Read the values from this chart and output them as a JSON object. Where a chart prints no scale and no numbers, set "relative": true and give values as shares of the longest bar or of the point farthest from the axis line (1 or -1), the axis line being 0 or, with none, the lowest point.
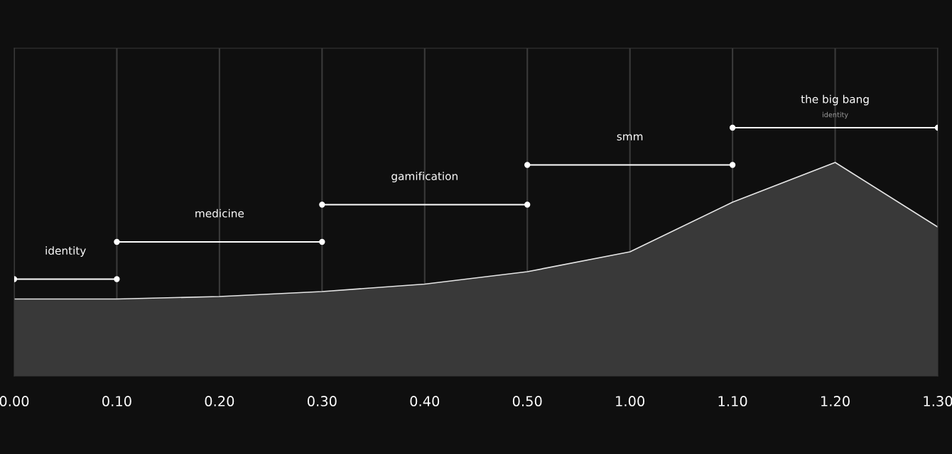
{
  "chart_data": {
    "type": "area",
    "relative": true,
    "grid": "x",
    "categories": [
      "0.00",
      "0.10",
      "0.20",
      "0.30",
      "0.40",
      "0.50",
      "1.00",
      "1.10",
      "1.20",
      "1.30"
    ],
    "series": [
      {
        "color": "#e6e6e6",
        "values": [
          0.31,
          0.31,
          0.32,
          0.34,
          0.37,
          0.42,
          0.5,
          0.7,
          0.86,
          0.6
        ]
      },
      {
        "type": "line",
        "name": "identity",
        "color": "#ffffff",
        "marker": "circle",
        "x": [
          "0.00",
          "0.10"
        ],
        "values": [
          0.39,
          0.39
        ]
      },
      {
        "type": "line",
        "name": "medicine",
        "color": "#ffffff",
        "marker": "circle",
        "x": [
          "0.10",
          "0.30"
        ],
        "values": [
          0.54,
          0.54
        ]
      },
      {
        "type": "line",
        "name": "gamification",
        "color": "#ffffff",
        "marker": "circle",
        "x": [
          "0.30",
          "0.50"
        ],
        "values": [
          0.69,
          0.69
        ]
      },
      {
        "type": "line",
        "name": "smm",
        "color": "#ffffff",
        "marker": "circle",
        "x": [
          "0.50",
          "1.10"
        ],
        "values": [
          0.85,
          0.85
        ]
      },
      {
        "type": "line",
        "name": "the big bang",
        "color": "#ffffff",
        "marker": "circle",
        "x": [
          "1.10",
          "1.30"
        ],
        "values": [
          1.0,
          1.0
        ]
      }
    ],
    "annotations": [
      "identity"
    ]
  }
}
